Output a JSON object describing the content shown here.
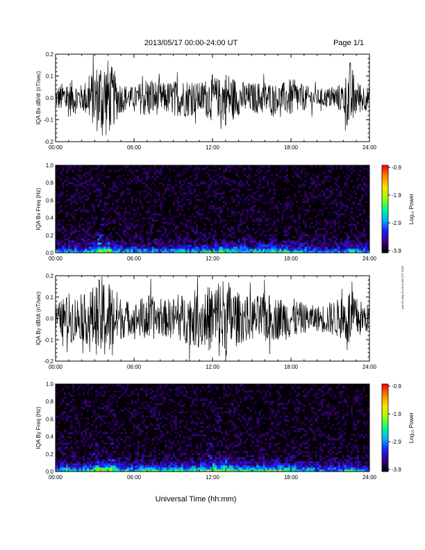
{
  "header": {
    "title": "2013/05/17  00:00-24:00 UT",
    "page": "Page 1/1"
  },
  "footer": {
    "xlabel": "Universal Time (hh:mm)",
    "side_note": "mel Fri May 20 19:20:58 CST 2016"
  },
  "colorbar": {
    "label": "Log₁₀ Power",
    "ticks": [
      "-0.9",
      "-1.9",
      "-2.9",
      "-3.9"
    ],
    "range": [
      -3.9,
      -0.9
    ],
    "colors": [
      "#000000",
      "#3a007a",
      "#1c1cff",
      "#00b4ff",
      "#00ff80",
      "#a0ff00",
      "#ffe000",
      "#ff8000",
      "#ff0000"
    ]
  },
  "chart_data": [
    {
      "type": "line",
      "ylabel": "IQA Bx dB/dt (nT/sec)",
      "xlim": [
        0,
        24
      ],
      "ylim": [
        -0.2,
        0.2
      ],
      "xticks": [
        "00:00",
        "06:00",
        "12:00",
        "18:00",
        "24:00"
      ],
      "yticks": [
        "0.2",
        "0.1",
        "0.0",
        "-0.1",
        "-0.2"
      ],
      "x": [
        0,
        1,
        2,
        3,
        3.5,
        4,
        5,
        6,
        7,
        8,
        9,
        10,
        11,
        12,
        12.5,
        13,
        14,
        15,
        16,
        17,
        18,
        19,
        20,
        21,
        22,
        22.5,
        23,
        24
      ],
      "amplitude": [
        0.05,
        0.09,
        0.06,
        0.14,
        0.2,
        0.18,
        0.07,
        0.05,
        0.1,
        0.07,
        0.08,
        0.09,
        0.07,
        0.11,
        0.09,
        0.13,
        0.08,
        0.07,
        0.08,
        0.06,
        0.09,
        0.06,
        0.04,
        0.05,
        0.07,
        0.18,
        0.08,
        0.05
      ]
    },
    {
      "type": "heatmap",
      "ylabel": "IQA Bx Freq (Hz)",
      "xlim": [
        0,
        24
      ],
      "ylim": [
        0.0,
        1.0
      ],
      "xticks": [
        "00:00",
        "06:00",
        "12:00",
        "18:00",
        "24:00"
      ],
      "yticks": [
        "1.0",
        "0.8",
        "0.6",
        "0.4",
        "0.2",
        "0.0"
      ],
      "x": [
        0,
        1,
        2,
        3,
        3.5,
        4,
        5,
        6,
        7,
        8,
        9,
        10,
        11,
        12,
        12.5,
        13,
        14,
        15,
        16,
        17,
        18,
        19,
        20,
        21,
        22,
        22.5,
        23,
        24
      ],
      "low_freq_power": [
        -2.6,
        -2.5,
        -2.7,
        -2.1,
        -1.7,
        -1.9,
        -2.5,
        -2.6,
        -2.4,
        -2.6,
        -2.5,
        -2.4,
        -2.4,
        -2.2,
        -2.1,
        -2.0,
        -2.3,
        -2.4,
        -2.2,
        -2.1,
        -2.2,
        -2.5,
        -2.8,
        -2.8,
        -2.7,
        -2.2,
        -2.5,
        -2.8
      ]
    },
    {
      "type": "line",
      "ylabel": "IQA By dB/dt (nT/sec)",
      "xlim": [
        0,
        24
      ],
      "ylim": [
        -0.2,
        0.2
      ],
      "xticks": [
        "00:00",
        "06:00",
        "12:00",
        "18:00",
        "24:00"
      ],
      "yticks": [
        "0.2",
        "0.1",
        "0.0",
        "-0.1",
        "-0.2"
      ],
      "x": [
        0,
        1,
        2,
        3,
        3.5,
        4,
        5,
        6,
        7,
        8,
        9,
        10,
        11,
        12,
        12.5,
        13,
        14,
        15,
        16,
        17,
        18,
        19,
        20,
        21,
        22,
        22.5,
        23,
        24
      ],
      "amplitude": [
        0.06,
        0.12,
        0.1,
        0.16,
        0.2,
        0.2,
        0.1,
        0.07,
        0.12,
        0.08,
        0.1,
        0.12,
        0.14,
        0.16,
        0.2,
        0.2,
        0.12,
        0.1,
        0.12,
        0.1,
        0.1,
        0.07,
        0.06,
        0.08,
        0.1,
        0.15,
        0.1,
        0.06
      ]
    },
    {
      "type": "heatmap",
      "ylabel": "IQA By Freq (Hz)",
      "xlim": [
        0,
        24
      ],
      "ylim": [
        0.0,
        1.0
      ],
      "xticks": [
        "00:00",
        "06:00",
        "12:00",
        "18:00",
        "24:00"
      ],
      "yticks": [
        "1.0",
        "0.8",
        "0.6",
        "0.4",
        "0.2",
        "0.0"
      ],
      "x": [
        0,
        1,
        2,
        3,
        3.5,
        4,
        5,
        6,
        7,
        8,
        9,
        10,
        11,
        12,
        12.5,
        13,
        14,
        15,
        16,
        17,
        18,
        19,
        20,
        21,
        22,
        22.5,
        23,
        24
      ],
      "low_freq_power": [
        -2.5,
        -2.3,
        -2.5,
        -1.9,
        -1.5,
        -1.7,
        -2.3,
        -2.4,
        -2.2,
        -2.4,
        -2.3,
        -2.2,
        -2.1,
        -1.9,
        -1.8,
        -1.8,
        -2.1,
        -2.2,
        -2.0,
        -2.0,
        -2.1,
        -2.4,
        -2.6,
        -2.7,
        -2.5,
        -2.0,
        -2.4,
        -2.7
      ]
    }
  ]
}
